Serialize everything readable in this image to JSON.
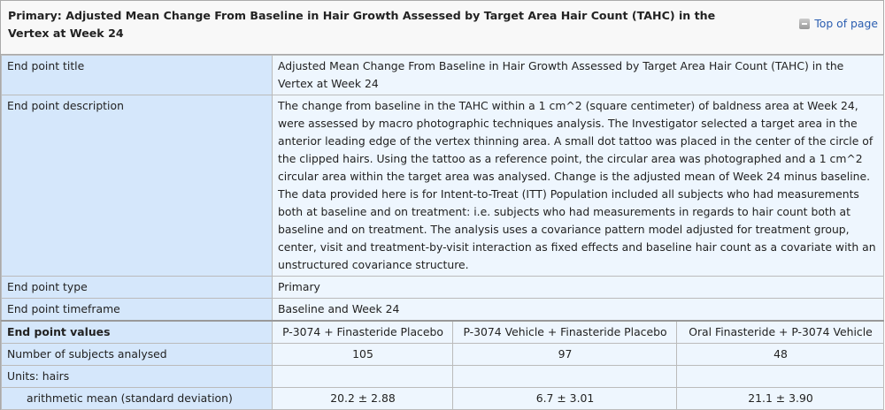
{
  "header": {
    "title": "Primary: Adjusted Mean Change From Baseline in Hair Growth Assessed by Target Area Hair Count (TAHC) in the Vertex at Week 24",
    "top_link": "Top of page",
    "top_icon": "collapse-icon"
  },
  "rows": [
    {
      "label": "End point title",
      "value": "Adjusted Mean Change From Baseline in Hair Growth Assessed by Target Area Hair Count (TAHC) in the Vertex at Week 24"
    },
    {
      "label": "End point description",
      "value": "The change from baseline in the TAHC within a 1 cm^2 (square centimeter) of baldness area at Week 24, were assessed by macro photographic techniques analysis. The Investigator selected a target area in the anterior leading edge of the vertex thinning area. A small dot tattoo was placed in the center of the circle of the clipped hairs. Using the tattoo as a reference point, the circular area was photographed and a 1 cm^2 circular area within the target area was analysed. Change is the adjusted mean of Week 24 minus baseline. The data provided here is for Intent-to-Treat (ITT) Population included all subjects who had measurements both at baseline and on treatment: i.e. subjects who had measurements in regards to hair count both at baseline and on treatment. The analysis uses a covariance pattern model adjusted for treatment group, center, visit and treatment-by-visit interaction as fixed effects and baseline hair count as a covariate with an unstructured covariance structure."
    },
    {
      "label": "End point type",
      "value": "Primary"
    },
    {
      "label": "End point timeframe",
      "value": "Baseline and Week 24"
    }
  ],
  "values": {
    "header": "End point values",
    "groups": [
      "P-3074 + Finasteride Placebo",
      "P-3074 Vehicle + Finasteride Placebo",
      "Oral Finasteride + P-3074 Vehicle"
    ],
    "subjects_label": "Number of subjects analysed",
    "subjects": [
      "105",
      "97",
      "48"
    ],
    "units_label": "Units: hairs",
    "stat_label": "arithmetic mean (standard deviation)",
    "stat": [
      "20.2 ± 2.88",
      "6.7 ± 3.01",
      "21.1 ± 3.90"
    ]
  }
}
